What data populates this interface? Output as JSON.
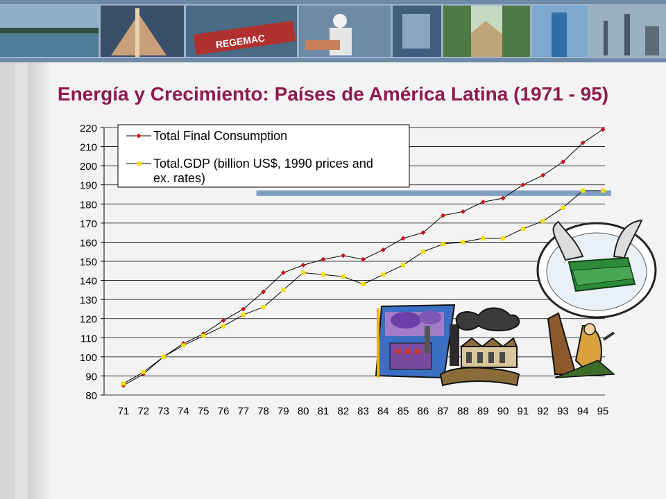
{
  "slide": {
    "title": "Energía y Crecimiento: Países de América Latina (1971 - 95)",
    "banner_logo_text": "REGEMAC"
  },
  "colors": {
    "title": "#8e1a4f",
    "series_consumption": "#cc1111",
    "series_gdp": "#f2e000",
    "highlight_bar": "#7f9fc2"
  },
  "chart_data": {
    "type": "line",
    "categories": [
      "71",
      "72",
      "73",
      "74",
      "75",
      "76",
      "77",
      "78",
      "79",
      "80",
      "81",
      "82",
      "83",
      "84",
      "85",
      "86",
      "87",
      "88",
      "89",
      "90",
      "91",
      "92",
      "93",
      "94",
      "95"
    ],
    "ylim": [
      80,
      220
    ],
    "yticks": [
      80,
      90,
      100,
      110,
      120,
      130,
      140,
      150,
      160,
      170,
      180,
      190,
      200,
      210,
      220
    ],
    "grid": true,
    "legend_position": "top-left",
    "series": [
      {
        "name": "Total Final Consumption",
        "marker": "diamond",
        "values": [
          85,
          91,
          100,
          107,
          112,
          119,
          125,
          134,
          144,
          148,
          151,
          153,
          151,
          156,
          162,
          165,
          174,
          176,
          181,
          183,
          190,
          195,
          202,
          212,
          219
        ]
      },
      {
        "name": "Total.GDP (billion US$, 1990 prices and ex. rates)",
        "marker": "square",
        "values": [
          86,
          92,
          100,
          106,
          111,
          116,
          122,
          126,
          135,
          144,
          143,
          142,
          138,
          143,
          148,
          155,
          159,
          160,
          162,
          162,
          167,
          171,
          178,
          187,
          187
        ]
      }
    ],
    "annotations": [
      {
        "type": "horizontal-band",
        "from_x": "78",
        "to_x": "95",
        "y": 186
      }
    ]
  },
  "clipart": [
    {
      "name": "money-with-wings-icon"
    },
    {
      "name": "factory-smog-icon"
    },
    {
      "name": "factory-smokestack-icon"
    },
    {
      "name": "lumberjack-icon"
    }
  ]
}
